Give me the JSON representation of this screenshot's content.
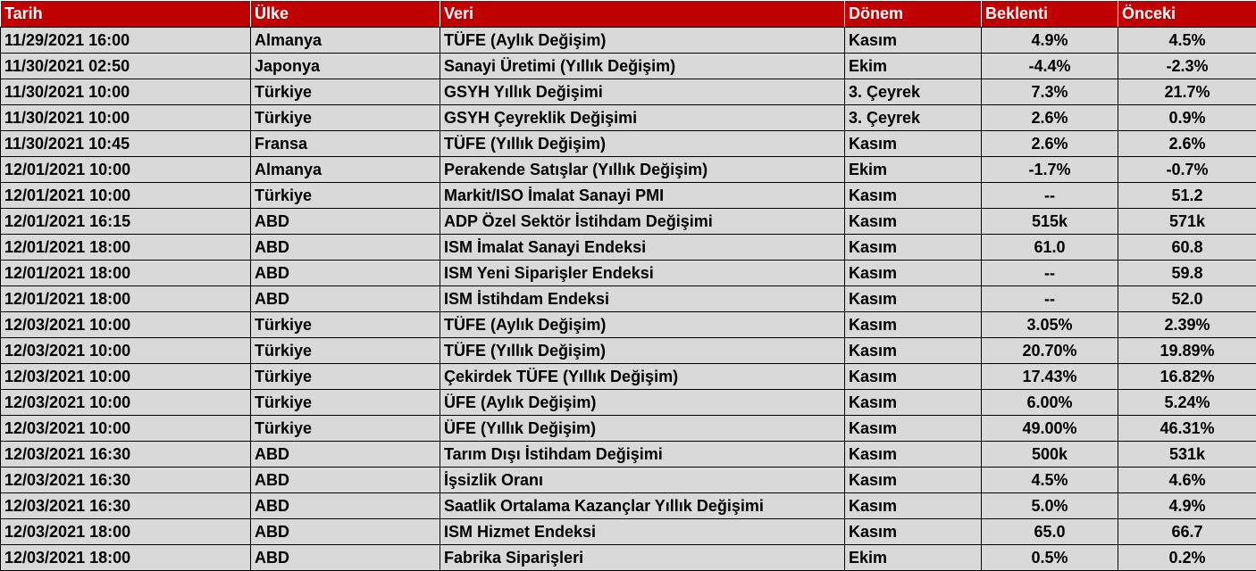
{
  "headers": [
    "Tarih",
    "Ülke",
    "Veri",
    "Dönem",
    "Beklenti",
    "Önceki"
  ],
  "rows": [
    [
      "11/29/2021 16:00",
      "Almanya",
      "TÜFE (Aylık Değişim)",
      "Kasım",
      "4.9%",
      "4.5%"
    ],
    [
      "11/30/2021 02:50",
      "Japonya",
      "Sanayi Üretimi (Yıllık Değişim)",
      "Ekim",
      "-4.4%",
      "-2.3%"
    ],
    [
      "11/30/2021 10:00",
      "Türkiye",
      "GSYH Yıllık Değişimi",
      "3. Çeyrek",
      "7.3%",
      "21.7%"
    ],
    [
      "11/30/2021 10:00",
      "Türkiye",
      "GSYH Çeyreklik Değişimi",
      "3. Çeyrek",
      "2.6%",
      "0.9%"
    ],
    [
      "11/30/2021 10:45",
      "Fransa",
      "TÜFE (Yıllık Değişim)",
      "Kasım",
      "2.6%",
      "2.6%"
    ],
    [
      "12/01/2021 10:00",
      "Almanya",
      "Perakende Satışlar (Yıllık Değişim)",
      "Ekim",
      "-1.7%",
      "-0.7%"
    ],
    [
      "12/01/2021 10:00",
      "Türkiye",
      "Markit/ISO İmalat Sanayi PMI",
      "Kasım",
      "--",
      "51.2"
    ],
    [
      "12/01/2021 16:15",
      "ABD",
      "ADP Özel Sektör İstihdam Değişimi",
      "Kasım",
      "515k",
      "571k"
    ],
    [
      "12/01/2021 18:00",
      "ABD",
      "ISM İmalat Sanayi Endeksi",
      "Kasım",
      "61.0",
      "60.8"
    ],
    [
      "12/01/2021 18:00",
      "ABD",
      "ISM Yeni Siparişler Endeksi",
      "Kasım",
      "--",
      "59.8"
    ],
    [
      "12/01/2021 18:00",
      "ABD",
      "ISM İstihdam Endeksi",
      "Kasım",
      "--",
      "52.0"
    ],
    [
      "12/03/2021 10:00",
      "Türkiye",
      "TÜFE (Aylık Değişim)",
      "Kasım",
      "3.05%",
      "2.39%"
    ],
    [
      "12/03/2021 10:00",
      "Türkiye",
      "TÜFE (Yıllık Değişim)",
      "Kasım",
      "20.70%",
      "19.89%"
    ],
    [
      "12/03/2021 10:00",
      "Türkiye",
      "Çekirdek TÜFE (Yıllık Değişim)",
      "Kasım",
      "17.43%",
      "16.82%"
    ],
    [
      "12/03/2021 10:00",
      "Türkiye",
      "ÜFE (Aylık Değişim)",
      "Kasım",
      "6.00%",
      "5.24%"
    ],
    [
      "12/03/2021 10:00",
      "Türkiye",
      "ÜFE (Yıllık Değişim)",
      "Kasım",
      "49.00%",
      "46.31%"
    ],
    [
      "12/03/2021 16:30",
      "ABD",
      "Tarım Dışı İstihdam Değişimi",
      "Kasım",
      "500k",
      "531k"
    ],
    [
      "12/03/2021 16:30",
      "ABD",
      "İşsizlik Oranı",
      "Kasım",
      "4.5%",
      "4.6%"
    ],
    [
      "12/03/2021 16:30",
      "ABD",
      "Saatlik Ortalama Kazançlar Yıllık Değişimi",
      "Kasım",
      "5.0%",
      "4.9%"
    ],
    [
      "12/03/2021 18:00",
      "ABD",
      "ISM Hizmet Endeksi",
      "Kasım",
      "65.0",
      "66.7"
    ],
    [
      "12/03/2021 18:00",
      "ABD",
      "Fabrika Siparişleri",
      "Ekim",
      "0.5%",
      "0.2%"
    ]
  ],
  "colors": {
    "header_bg": "#c00000",
    "header_text": "#ffffff",
    "row_bg": "#d9d9d9",
    "grid": "#000000"
  }
}
